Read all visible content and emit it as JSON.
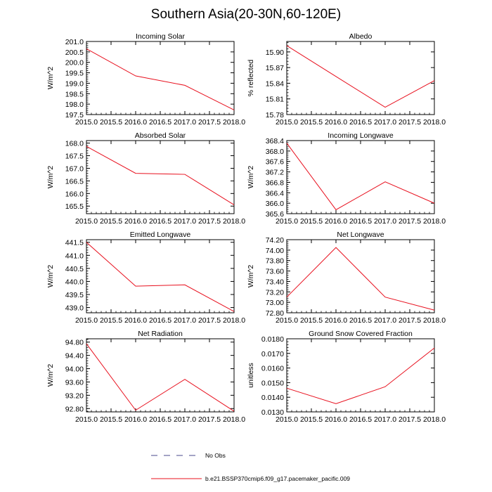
{
  "title": "Southern Asia(20-30N,60-120E)",
  "legend": [
    {
      "label": "No Obs",
      "style": "dashed",
      "color": "#4a4a8c"
    },
    {
      "label": "b.e21.BSSP370cmip6.f09_g17.pacemaker_pacific.009",
      "style": "solid",
      "color": "#e8101e"
    }
  ],
  "chart_data": [
    {
      "type": "line",
      "title": "Incoming Solar",
      "ylabel": "W/m^2",
      "x": [
        2015.0,
        2016.0,
        2017.0,
        2018.0
      ],
      "xticks": [
        "2015.0",
        "2015.5",
        "2016.0",
        "2016.5",
        "2017.0",
        "2017.5",
        "2018.0"
      ],
      "xlim": [
        2015.0,
        2018.0
      ],
      "ylim": [
        197.5,
        201.0
      ],
      "yticks": [
        "197.5",
        "198.0",
        "198.5",
        "199.0",
        "199.5",
        "200.0",
        "200.5",
        "201.0"
      ],
      "series": [
        {
          "values": [
            200.65,
            199.35,
            198.9,
            197.72
          ],
          "color": "#e8101e"
        }
      ]
    },
    {
      "type": "line",
      "title": "Albedo",
      "ylabel": "% reflected",
      "x": [
        2015.0,
        2016.0,
        2017.0,
        2018.0
      ],
      "xticks": [
        "2015.0",
        "2015.5",
        "2016.0",
        "2016.5",
        "2017.0",
        "2017.5",
        "2018.0"
      ],
      "xlim": [
        2015.0,
        2018.0
      ],
      "ylim": [
        15.78,
        15.92
      ],
      "yticks": [
        "15.78",
        "15.81",
        "15.84",
        "15.87",
        "15.90"
      ],
      "series": [
        {
          "values": [
            15.912,
            15.853,
            15.794,
            15.845
          ],
          "color": "#e8101e"
        }
      ]
    },
    {
      "type": "line",
      "title": "Absorbed Solar",
      "ylabel": "W/m^2",
      "x": [
        2015.0,
        2016.0,
        2017.0,
        2018.0
      ],
      "xticks": [
        "2015.0",
        "2015.5",
        "2016.0",
        "2016.5",
        "2017.0",
        "2017.5",
        "2018.0"
      ],
      "xlim": [
        2015.0,
        2018.0
      ],
      "ylim": [
        165.2,
        168.1
      ],
      "yticks": [
        "165.5",
        "166.0",
        "166.5",
        "167.0",
        "167.5",
        "168.0"
      ],
      "series": [
        {
          "values": [
            167.87,
            166.8,
            166.76,
            165.55
          ],
          "color": "#e8101e"
        }
      ]
    },
    {
      "type": "line",
      "title": "Incoming Longwave",
      "ylabel": "W/m^2",
      "x": [
        2015.0,
        2016.0,
        2017.0,
        2018.0
      ],
      "xticks": [
        "2015.0",
        "2015.5",
        "2016.0",
        "2016.5",
        "2017.0",
        "2017.5",
        "2018.0"
      ],
      "xlim": [
        2015.0,
        2018.0
      ],
      "ylim": [
        365.6,
        368.4
      ],
      "yticks": [
        "365.6",
        "366.0",
        "366.4",
        "366.8",
        "367.2",
        "367.6",
        "368.0",
        "368.4"
      ],
      "series": [
        {
          "values": [
            368.3,
            365.75,
            366.82,
            366.0
          ],
          "color": "#e8101e"
        }
      ]
    },
    {
      "type": "line",
      "title": "Emitted Longwave",
      "ylabel": "W/m^2",
      "x": [
        2015.0,
        2016.0,
        2017.0,
        2018.0
      ],
      "xticks": [
        "2015.0",
        "2015.5",
        "2016.0",
        "2016.5",
        "2017.0",
        "2017.5",
        "2018.0"
      ],
      "xlim": [
        2015.0,
        2018.0
      ],
      "ylim": [
        438.8,
        441.6
      ],
      "yticks": [
        "439.0",
        "439.5",
        "440.0",
        "440.5",
        "441.0",
        "441.5"
      ],
      "series": [
        {
          "values": [
            441.5,
            439.82,
            439.87,
            438.85
          ],
          "color": "#e8101e"
        }
      ]
    },
    {
      "type": "line",
      "title": "Net Longwave",
      "ylabel": "W/m^2",
      "x": [
        2015.0,
        2016.0,
        2017.0,
        2018.0
      ],
      "xticks": [
        "2015.0",
        "2015.5",
        "2016.0",
        "2016.5",
        "2017.0",
        "2017.5",
        "2018.0"
      ],
      "xlim": [
        2015.0,
        2018.0
      ],
      "ylim": [
        72.8,
        74.2
      ],
      "yticks": [
        "72.80",
        "73.00",
        "73.20",
        "73.40",
        "73.60",
        "73.80",
        "74.00",
        "74.20"
      ],
      "series": [
        {
          "values": [
            73.1,
            74.05,
            73.1,
            72.85
          ],
          "color": "#e8101e"
        }
      ]
    },
    {
      "type": "line",
      "title": "Net Radiation",
      "ylabel": "W/m^2",
      "x": [
        2015.0,
        2016.0,
        2017.0,
        2018.0
      ],
      "xticks": [
        "2015.0",
        "2015.5",
        "2016.0",
        "2016.5",
        "2017.0",
        "2017.5",
        "2018.0"
      ],
      "xlim": [
        2015.0,
        2018.0
      ],
      "ylim": [
        92.7,
        94.9
      ],
      "yticks": [
        "92.80",
        "93.20",
        "93.60",
        "94.00",
        "94.40",
        "94.80"
      ],
      "series": [
        {
          "values": [
            94.75,
            92.75,
            93.68,
            92.72
          ],
          "color": "#e8101e"
        }
      ]
    },
    {
      "type": "line",
      "title": "Ground Snow Covered Fraction",
      "ylabel": "unitless",
      "x": [
        2015.0,
        2016.0,
        2017.0,
        2018.0
      ],
      "xticks": [
        "2015.0",
        "2015.5",
        "2016.0",
        "2016.5",
        "2017.0",
        "2017.5",
        "2018.0"
      ],
      "xlim": [
        2015.0,
        2018.0
      ],
      "ylim": [
        0.013,
        0.018
      ],
      "yticks": [
        "0.0130",
        "0.0140",
        "0.0150",
        "0.0160",
        "0.0170",
        "0.0180"
      ],
      "series": [
        {
          "values": [
            0.01462,
            0.01356,
            0.01472,
            0.01737
          ],
          "color": "#e8101e"
        }
      ]
    }
  ]
}
